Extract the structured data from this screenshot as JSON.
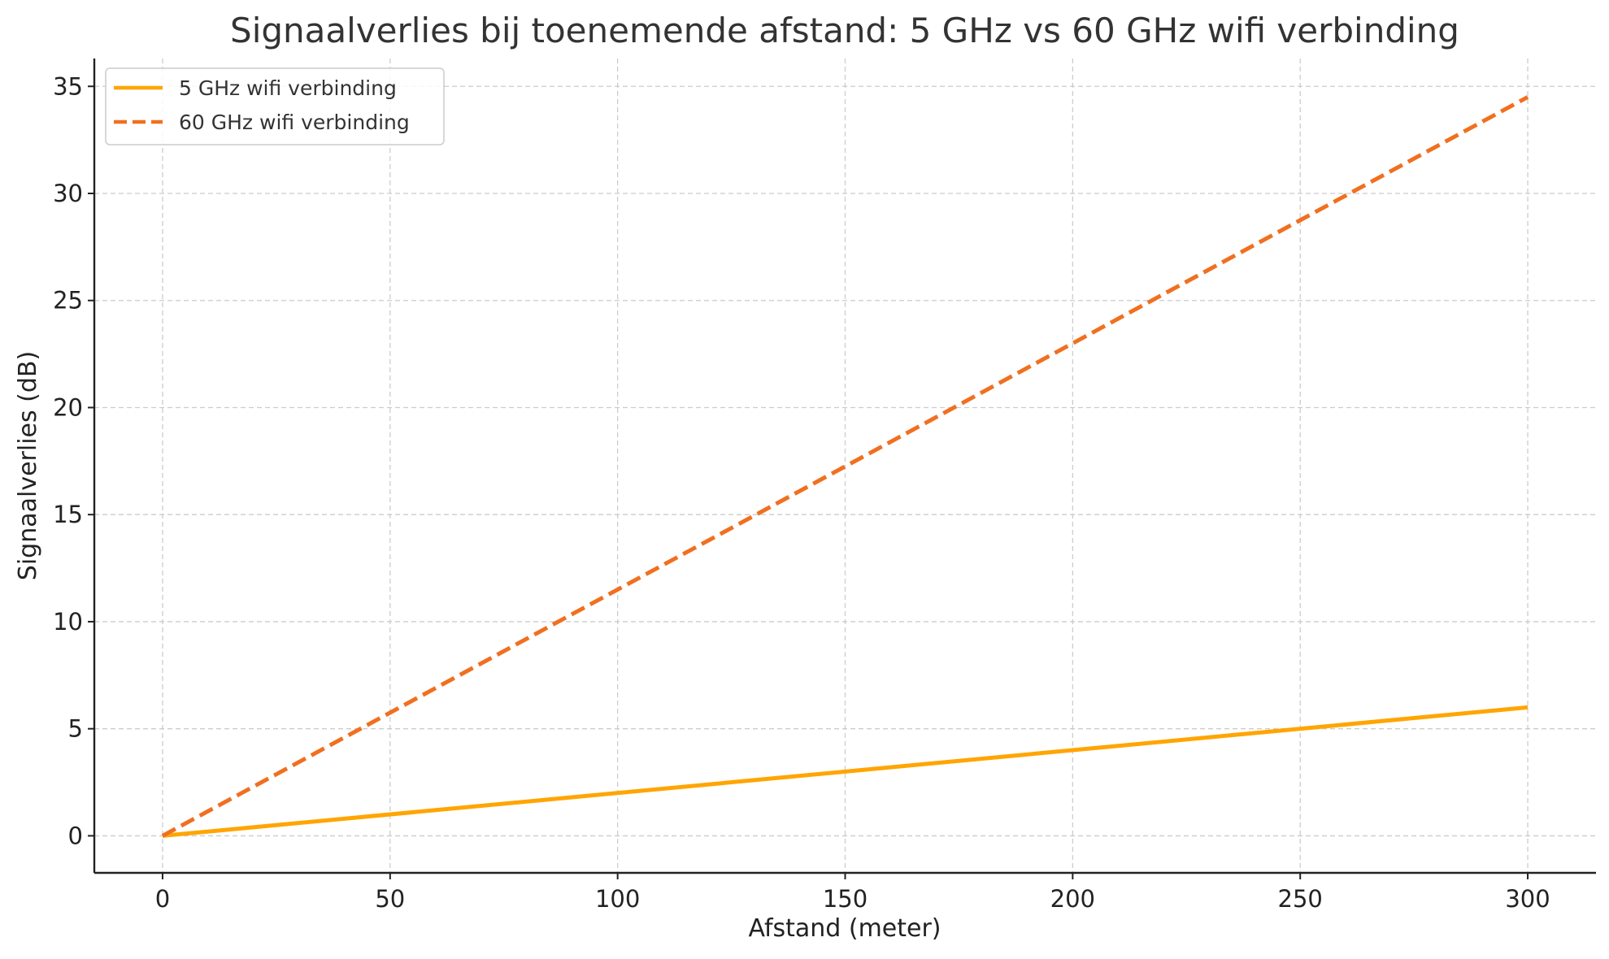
{
  "chart_data": {
    "type": "line",
    "title": "Signaalverlies bij toenemende afstand: 5 GHz vs 60 GHz wifi verbinding",
    "xlabel": "Afstand (meter)",
    "ylabel": "Signaalverlies (dB)",
    "xlim": [
      -15,
      315
    ],
    "ylim": [
      -1.73,
      36.3
    ],
    "xticks": [
      0,
      50,
      100,
      150,
      200,
      250,
      300
    ],
    "yticks": [
      0,
      5,
      10,
      15,
      20,
      25,
      30,
      35
    ],
    "grid": true,
    "legend_position": "upper-left",
    "series": [
      {
        "name": "5 GHz wifi verbinding",
        "color": "#FFA500",
        "line_style": "solid",
        "x": [
          0,
          300
        ],
        "y": [
          0,
          6
        ]
      },
      {
        "name": "60 GHz wifi verbinding",
        "color": "#F07020",
        "line_style": "dashed",
        "x": [
          0,
          300
        ],
        "y": [
          0,
          34.5
        ]
      }
    ]
  }
}
